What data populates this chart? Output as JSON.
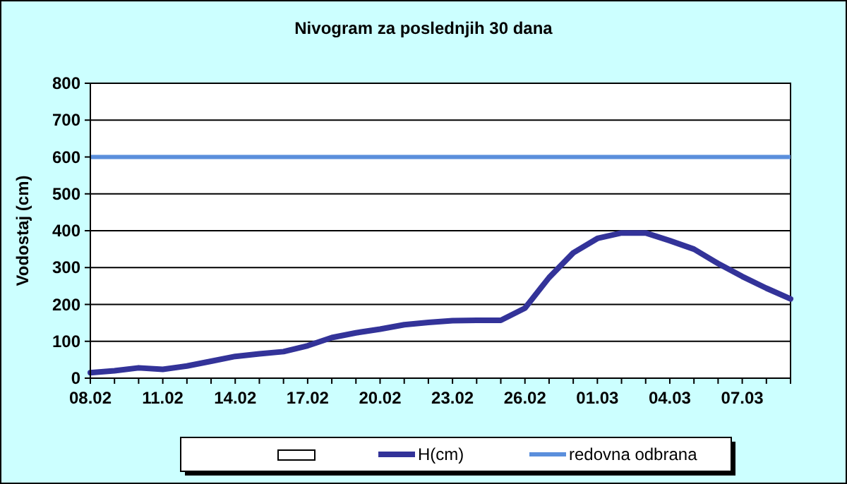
{
  "chart_data": {
    "type": "line",
    "title": "Nivogram za poslednjih 30 dana",
    "ylabel": "Vodostaj (cm)",
    "categories": [
      "08.02",
      null,
      null,
      "11.02",
      null,
      null,
      "14.02",
      null,
      null,
      "17.02",
      null,
      null,
      "20.02",
      null,
      null,
      "23.02",
      null,
      null,
      "26.02",
      null,
      null,
      "01.03",
      null,
      null,
      "04.03",
      null,
      null,
      "07.03",
      null,
      null
    ],
    "series": [
      {
        "name": "H(cm)",
        "color": "#333399",
        "values": [
          15,
          20,
          28,
          24,
          33,
          46,
          59,
          66,
          72,
          88,
          110,
          123,
          133,
          145,
          151,
          156,
          157,
          157,
          190,
          273,
          340,
          379,
          394,
          394,
          373,
          350,
          311,
          276,
          244,
          215
        ]
      }
    ],
    "ref_lines": [
      {
        "axis": "y",
        "value": 600,
        "label": "redovna odbrana",
        "color": "#5b8fdc"
      }
    ],
    "ylim": [
      0,
      800
    ],
    "yticks": [
      0,
      100,
      200,
      300,
      400,
      500,
      600,
      700,
      800
    ],
    "grid": "y",
    "legend": "bottom",
    "line_style": "solid",
    "marker": "none"
  }
}
